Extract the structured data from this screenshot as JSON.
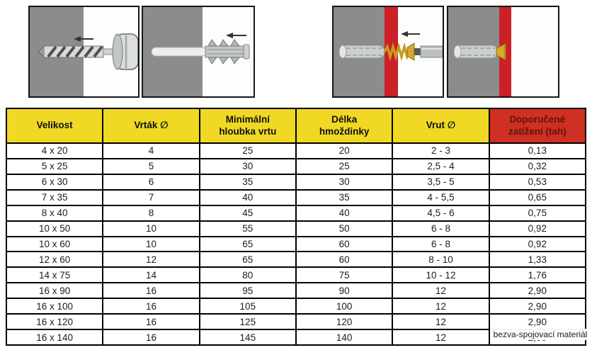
{
  "illustrations": {
    "steps": [
      {
        "id": "step-1",
        "icon": "drill-bit-in-wall-icon",
        "meaning": "drill the hole"
      },
      {
        "id": "step-2",
        "icon": "wall-plug-insert-icon",
        "meaning": "insert the plug"
      },
      {
        "id": "step-3",
        "icon": "screw-driving-icon",
        "meaning": "drive the screw through fixture"
      },
      {
        "id": "step-4",
        "icon": "finished-anchor-icon",
        "meaning": "finished anchoring"
      }
    ]
  },
  "table": {
    "columns": [
      {
        "id": "velikost",
        "label": "Velikost",
        "style": "yellow"
      },
      {
        "id": "vrtak-prumer",
        "label": "Vrták ∅",
        "style": "yellow"
      },
      {
        "id": "min-hloubka-vrtu",
        "label": "Minimální\nhloubka vrtu",
        "style": "yellow"
      },
      {
        "id": "delka-hmozdinky",
        "label": "Délka\nhmoždinky",
        "style": "yellow"
      },
      {
        "id": "vrut-prumer",
        "label": "Vrut ∅",
        "style": "yellow"
      },
      {
        "id": "doporucene-zatizeni",
        "label": "Doporučené\nzatížení (tah)",
        "style": "red"
      }
    ],
    "rows": [
      [
        "4 x 20",
        "4",
        "25",
        "20",
        "2 - 3",
        "0,13"
      ],
      [
        "5 x 25",
        "5",
        "30",
        "25",
        "2,5 - 4",
        "0,32"
      ],
      [
        "6 x 30",
        "6",
        "35",
        "30",
        "3,5 - 5",
        "0,53"
      ],
      [
        "7 x 35",
        "7",
        "40",
        "35",
        "4 - 5,5",
        "0,65"
      ],
      [
        "8 x 40",
        "8",
        "45",
        "40",
        "4,5 - 6",
        "0,75"
      ],
      [
        "10 x 50",
        "10",
        "55",
        "50",
        "6 - 8",
        "0,92"
      ],
      [
        "10 x 60",
        "10",
        "65",
        "60",
        "6 - 8",
        "0,92"
      ],
      [
        "12 x 60",
        "12",
        "65",
        "60",
        "8 - 10",
        "1,33"
      ],
      [
        "14 x 75",
        "14",
        "80",
        "75",
        "10 - 12",
        "1,76"
      ],
      [
        "16 x 90",
        "16",
        "95",
        "90",
        "12",
        "2,90"
      ],
      [
        "16 x 100",
        "16",
        "105",
        "100",
        "12",
        "2,90"
      ],
      [
        "16 x 120",
        "16",
        "125",
        "120",
        "12",
        "2,90"
      ],
      [
        "16 x 140",
        "16",
        "145",
        "140",
        "12",
        "2,90"
      ]
    ]
  },
  "watermark": {
    "text": "bezva-spojovací materiál"
  },
  "colors": {
    "header_yellow": "#f0d824",
    "header_red": "#d02f23",
    "header_red_text": "#5e150b",
    "wall_gray": "#8c8c8c",
    "fixture_red": "#cb2026",
    "screw_gold": "#d0a52a",
    "table_border": "#000000"
  }
}
